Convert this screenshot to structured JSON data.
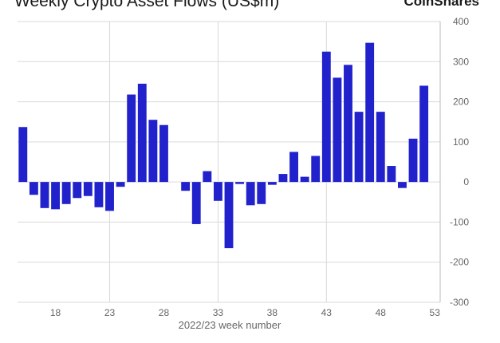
{
  "header": {
    "title": "Weekly Crypto Asset Flows (US$m)",
    "brand": "CoinShares"
  },
  "chart_data": {
    "type": "bar",
    "title": "Weekly Crypto Asset Flows (US$m)",
    "xlabel": "2022/23 week number",
    "ylabel": "",
    "ylim": [
      -300,
      400
    ],
    "yticks": [
      400,
      300,
      200,
      100,
      0,
      -100,
      -200,
      -300
    ],
    "xticks": [
      18,
      23,
      28,
      33,
      38,
      43,
      48,
      53
    ],
    "grid": true,
    "y_axis_position": "right",
    "bar_color": "#2222cc",
    "x": [
      15,
      16,
      17,
      18,
      19,
      20,
      21,
      22,
      23,
      24,
      25,
      26,
      27,
      28,
      29,
      30,
      31,
      32,
      33,
      34,
      35,
      36,
      37,
      38,
      39,
      40,
      41,
      42,
      43,
      44,
      45,
      46,
      47,
      48,
      49,
      50,
      51,
      52,
      53
    ],
    "values": [
      137,
      -32,
      -65,
      -68,
      -55,
      -40,
      -35,
      -63,
      -72,
      -12,
      218,
      245,
      155,
      142,
      0,
      -22,
      -105,
      27,
      -47,
      -165,
      -5,
      -58,
      -55,
      -7,
      20,
      75,
      13,
      65,
      325,
      260,
      292,
      175,
      347,
      175,
      40,
      -15,
      108,
      240,
      0
    ]
  }
}
